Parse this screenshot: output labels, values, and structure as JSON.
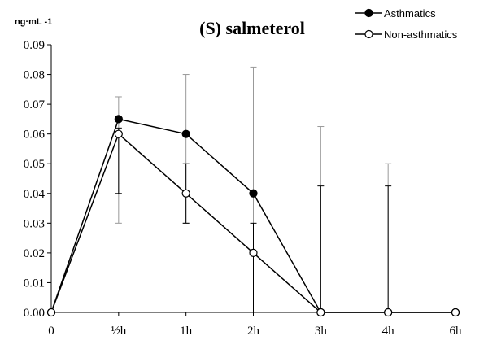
{
  "chart_data": {
    "type": "line",
    "title": "(S) salmeterol",
    "ylabel": "ng·mL -1",
    "xlabel": "",
    "categories": [
      "0",
      "½h",
      "1h",
      "2h",
      "3h",
      "4h",
      "6h"
    ],
    "ylim": [
      0,
      0.09
    ],
    "y_ticks": [
      "0.00",
      "0.01",
      "0.02",
      "0.03",
      "0.04",
      "0.05",
      "0.06",
      "0.07",
      "0.08",
      "0.09"
    ],
    "grid": false,
    "legend_position": "top-right",
    "series": [
      {
        "name": "Asthmatics",
        "marker": "filled-circle",
        "color": "#000000",
        "values": [
          0,
          0.065,
          0.06,
          0.04,
          0,
          0,
          0
        ],
        "error_upper": [
          0,
          0.0725,
          0.08,
          0.0825,
          0.0625,
          0.05,
          0
        ],
        "error_lower": [
          0,
          0.03,
          0.03,
          0,
          0,
          0,
          0
        ],
        "error_color": "#999999"
      },
      {
        "name": "Non-asthmatics",
        "marker": "open-circle",
        "color": "#000000",
        "values": [
          0,
          0.06,
          0.04,
          0.02,
          0,
          0,
          0
        ],
        "error_upper": [
          0,
          0.062,
          0.05,
          0.03,
          0.0425,
          0.0425,
          0
        ],
        "error_lower": [
          0,
          0.04,
          0.03,
          0,
          0,
          0,
          0
        ],
        "error_color": "#000000"
      }
    ]
  }
}
